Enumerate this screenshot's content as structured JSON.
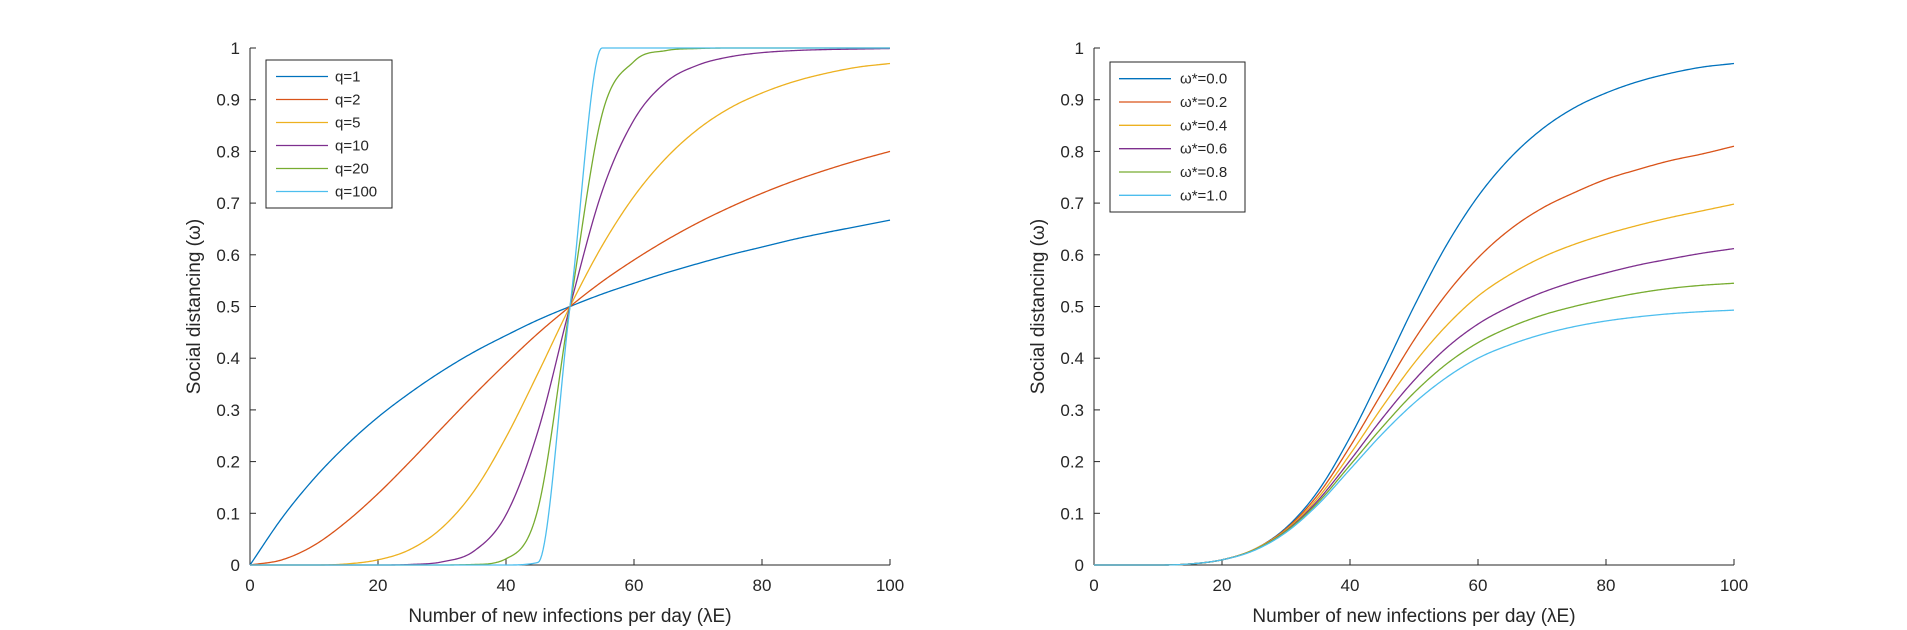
{
  "chart_data": [
    {
      "type": "line",
      "title": "",
      "xlabel": "Number of new infections per day (λE)",
      "ylabel": "Social distancing (ω)",
      "xlim": [
        0,
        100
      ],
      "ylim": [
        0,
        1
      ],
      "xticks": [
        "0",
        "20",
        "40",
        "60",
        "80",
        "100"
      ],
      "yticks": [
        "0",
        "0.1",
        "0.2",
        "0.3",
        "0.4",
        "0.5",
        "0.6",
        "0.7",
        "0.8",
        "0.9",
        "1"
      ],
      "grid": false,
      "legend_position": "top-left",
      "x": [
        0,
        5,
        10,
        15,
        20,
        25,
        30,
        35,
        40,
        45,
        50,
        55,
        60,
        65,
        70,
        75,
        80,
        85,
        90,
        95,
        100
      ],
      "series": [
        {
          "name": "q=1",
          "color": "#0072BD",
          "values": [
            0,
            0.091,
            0.167,
            0.231,
            0.286,
            0.333,
            0.375,
            0.412,
            0.444,
            0.474,
            0.5,
            0.524,
            0.545,
            0.565,
            0.583,
            0.6,
            0.615,
            0.63,
            0.643,
            0.655,
            0.667
          ]
        },
        {
          "name": "q=2",
          "color": "#D95319",
          "values": [
            0,
            0.01,
            0.038,
            0.083,
            0.138,
            0.2,
            0.265,
            0.329,
            0.39,
            0.448,
            0.5,
            0.548,
            0.59,
            0.628,
            0.662,
            0.692,
            0.719,
            0.743,
            0.764,
            0.783,
            0.8
          ]
        },
        {
          "name": "q=5",
          "color": "#EDB120",
          "values": [
            0,
            0,
            0,
            0.002,
            0.01,
            0.03,
            0.072,
            0.143,
            0.247,
            0.371,
            0.5,
            0.617,
            0.713,
            0.787,
            0.843,
            0.884,
            0.913,
            0.935,
            0.951,
            0.963,
            0.97
          ]
        },
        {
          "name": "q=10",
          "color": "#7E2F8E",
          "values": [
            0,
            0,
            0,
            0,
            0,
            0.001,
            0.006,
            0.027,
            0.097,
            0.259,
            0.5,
            0.722,
            0.861,
            0.934,
            0.967,
            0.983,
            0.991,
            0.995,
            0.997,
            0.998,
            0.999
          ]
        },
        {
          "name": "q=20",
          "color": "#77AC30",
          "values": [
            0,
            0,
            0,
            0,
            0,
            0,
            0,
            0.001,
            0.012,
            0.109,
            0.5,
            0.871,
            0.974,
            0.995,
            0.999,
            1,
            1,
            1,
            1,
            1,
            1
          ]
        },
        {
          "name": "q=100",
          "color": "#4DBEEE",
          "values": [
            0,
            0,
            0,
            0,
            0,
            0,
            0,
            0,
            0,
            0.005,
            0.5,
            1,
            1,
            1,
            1,
            1,
            1,
            1,
            1,
            1,
            1
          ]
        }
      ]
    },
    {
      "type": "line",
      "title": "",
      "xlabel": "Number of new infections per day (λE)",
      "ylabel": "Social distancing (ω)",
      "xlim": [
        0,
        100
      ],
      "ylim": [
        0,
        1
      ],
      "xticks": [
        "0",
        "20",
        "40",
        "60",
        "80",
        "100"
      ],
      "yticks": [
        "0",
        "0.1",
        "0.2",
        "0.3",
        "0.4",
        "0.5",
        "0.6",
        "0.7",
        "0.8",
        "0.9",
        "1"
      ],
      "grid": false,
      "legend_position": "top-left",
      "x": [
        0,
        5,
        10,
        15,
        20,
        25,
        30,
        35,
        40,
        45,
        50,
        55,
        60,
        65,
        70,
        75,
        80,
        85,
        90,
        95,
        100
      ],
      "series": [
        {
          "name": "ω*=0.0",
          "color": "#0072BD",
          "values": [
            0,
            0,
            0,
            0.002,
            0.01,
            0.03,
            0.072,
            0.143,
            0.247,
            0.371,
            0.5,
            0.617,
            0.713,
            0.787,
            0.843,
            0.884,
            0.913,
            0.935,
            0.951,
            0.963,
            0.97
          ]
        },
        {
          "name": "ω*=0.2",
          "color": "#D95319",
          "values": [
            0,
            0,
            0,
            0.002,
            0.01,
            0.03,
            0.07,
            0.136,
            0.229,
            0.333,
            0.435,
            0.523,
            0.594,
            0.649,
            0.69,
            0.72,
            0.746,
            0.765,
            0.782,
            0.795,
            0.81
          ]
        },
        {
          "name": "ω*=0.4",
          "color": "#EDB120",
          "values": [
            0,
            0,
            0,
            0.002,
            0.01,
            0.03,
            0.068,
            0.13,
            0.214,
            0.305,
            0.39,
            0.462,
            0.52,
            0.562,
            0.595,
            0.62,
            0.64,
            0.657,
            0.672,
            0.685,
            0.698
          ]
        },
        {
          "name": "ω*=0.6",
          "color": "#7E2F8E",
          "values": [
            0,
            0,
            0,
            0.002,
            0.01,
            0.029,
            0.066,
            0.125,
            0.202,
            0.283,
            0.357,
            0.419,
            0.466,
            0.5,
            0.527,
            0.548,
            0.565,
            0.58,
            0.592,
            0.603,
            0.612
          ]
        },
        {
          "name": "ω*=0.8",
          "color": "#77AC30",
          "values": [
            0,
            0,
            0,
            0.002,
            0.01,
            0.029,
            0.065,
            0.121,
            0.193,
            0.266,
            0.333,
            0.388,
            0.43,
            0.46,
            0.483,
            0.5,
            0.514,
            0.526,
            0.535,
            0.541,
            0.545
          ]
        },
        {
          "name": "ω*=1.0",
          "color": "#4DBEEE",
          "values": [
            0,
            0,
            0,
            0.002,
            0.01,
            0.028,
            0.063,
            0.117,
            0.185,
            0.253,
            0.313,
            0.362,
            0.4,
            0.426,
            0.446,
            0.461,
            0.472,
            0.48,
            0.486,
            0.49,
            0.493
          ]
        }
      ]
    }
  ]
}
